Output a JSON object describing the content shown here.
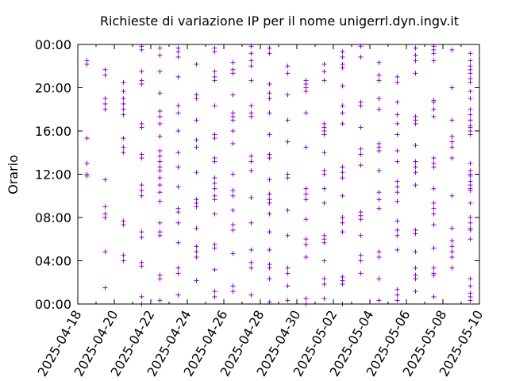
{
  "chart_data": {
    "type": "scatter",
    "title": "Richieste di variazione IP per il nome unigerrl.dyn.ingv.it",
    "ylabel": "Orario",
    "xlabel": "",
    "grid": false,
    "legend": "none",
    "marker": "plus",
    "color": "#9400d3",
    "xlim": [
      "2025-04-18",
      "2025-05-10"
    ],
    "ylim": [
      "00:00",
      "24:00"
    ],
    "x_ticks": [
      "2025-04-18",
      "2025-04-20",
      "2025-04-22",
      "2025-04-24",
      "2025-04-26",
      "2025-04-28",
      "2025-04-30",
      "2025-05-02",
      "2025-05-04",
      "2025-05-06",
      "2025-05-08",
      "2025-05-10"
    ],
    "y_ticks": [
      "00:00",
      "04:00",
      "08:00",
      "12:00",
      "16:00",
      "20:00",
      "00:00"
    ],
    "points": [
      [
        "2025-04-18 12:00",
        "2025-04-18 15:20",
        "2025-04-18 22:10",
        "2025-04-18 22:30",
        "2025-04-18 11:50",
        "2025-04-18 13:00"
      ],
      [
        "2025-04-19 01:30",
        "2025-04-19 04:50",
        "2025-04-19 08:00",
        "2025-04-19 08:20",
        "2025-04-19 09:00",
        "2025-04-19 11:30",
        "2025-04-19 18:00",
        "2025-04-19 18:30",
        "2025-04-19 19:00",
        "2025-04-19 21:10",
        "2025-04-19 21:40"
      ],
      [
        "2025-04-20 04:00",
        "2025-04-20 04:30",
        "2025-04-20 07:20",
        "2025-04-20 07:40",
        "2025-04-20 14:00",
        "2025-04-20 14:30",
        "2025-04-20 15:20",
        "2025-04-20 17:30",
        "2025-04-20 18:00",
        "2025-04-20 18:30",
        "2025-04-20 19:00",
        "2025-04-20 19:40",
        "2025-04-20 20:30"
      ],
      [
        "2025-04-21 00:00",
        "2025-04-21 00:40",
        "2025-04-21 03:30",
        "2025-04-21 03:50",
        "2025-04-21 06:10",
        "2025-04-21 06:40",
        "2025-04-21 10:00",
        "2025-04-21 10:30",
        "2025-04-21 11:00",
        "2025-04-21 13:30",
        "2025-04-21 13:50",
        "2025-04-21 16:20",
        "2025-04-21 16:40",
        "2025-04-21 20:20",
        "2025-04-21 20:40",
        "2025-04-21 21:30",
        "2025-04-21 23:30",
        "2025-04-21 23:50"
      ],
      [
        "2025-04-22 00:20",
        "2025-04-22 02:20",
        "2025-04-22 02:40",
        "2025-04-22 06:20",
        "2025-04-22 06:40",
        "2025-04-22 07:30",
        "2025-04-22 09:30",
        "2025-04-22 10:20",
        "2025-04-22 11:00",
        "2025-04-22 11:40",
        "2025-04-22 12:20",
        "2025-04-22 12:40",
        "2025-04-22 13:10",
        "2025-04-22 13:40",
        "2025-04-22 14:10",
        "2025-04-22 15:30",
        "2025-04-22 16:40",
        "2025-04-22 17:20",
        "2025-04-22 17:50",
        "2025-04-22 19:30",
        "2025-04-22 21:30",
        "2025-04-22 23:00",
        "2025-04-22 23:40"
      ],
      [
        "2025-04-23 00:50",
        "2025-04-23 02:50",
        "2025-04-23 03:20",
        "2025-04-23 05:40",
        "2025-04-23 07:30",
        "2025-04-23 08:30",
        "2025-04-23 08:50",
        "2025-04-23 10:50",
        "2025-04-23 12:40",
        "2025-04-23 14:00",
        "2025-04-23 16:00",
        "2025-04-23 17:40",
        "2025-04-23 18:20",
        "2025-04-23 21:00",
        "2025-04-23 22:50",
        "2025-04-23 23:20",
        "2025-04-23 23:40"
      ],
      [
        "2025-04-24 02:10",
        "2025-04-24 04:20",
        "2025-04-24 04:50",
        "2025-04-24 05:20",
        "2025-04-24 07:00",
        "2025-04-24 09:00",
        "2025-04-24 09:20",
        "2025-04-24 09:40",
        "2025-04-24 12:10",
        "2025-04-24 14:30",
        "2025-04-24 15:10",
        "2025-04-24 17:00",
        "2025-04-24 19:00",
        "2025-04-24 19:20",
        "2025-04-24 22:10"
      ],
      [
        "2025-04-25 00:40",
        "2025-04-25 01:10",
        "2025-04-25 03:10",
        "2025-04-25 05:10",
        "2025-04-25 05:30",
        "2025-04-25 08:20",
        "2025-04-25 09:40",
        "2025-04-25 10:00",
        "2025-04-25 10:40",
        "2025-04-25 11:10",
        "2025-04-25 11:40",
        "2025-04-25 13:10",
        "2025-04-25 13:30",
        "2025-04-25 15:20",
        "2025-04-25 15:40",
        "2025-04-25 18:20",
        "2025-04-25 20:40",
        "2025-04-25 21:00",
        "2025-04-25 21:30",
        "2025-04-25 23:20",
        "2025-04-25 23:40"
      ],
      [
        "2025-04-26 01:10",
        "2025-04-26 01:40",
        "2025-04-26 04:40",
        "2025-04-26 06:50",
        "2025-04-26 07:20",
        "2025-04-26 08:40",
        "2025-04-26 10:00",
        "2025-04-26 10:30",
        "2025-04-26 12:00",
        "2025-04-26 14:50",
        "2025-04-26 16:00",
        "2025-04-26 17:00",
        "2025-04-26 17:20",
        "2025-04-26 17:40",
        "2025-04-26 19:20",
        "2025-04-26 21:20",
        "2025-04-26 21:40",
        "2025-04-26 22:20"
      ],
      [
        "2025-04-27 00:50",
        "2025-04-27 03:20",
        "2025-04-27 03:50",
        "2025-04-27 05:00",
        "2025-04-27 07:30",
        "2025-04-27 09:50",
        "2025-04-27 12:20",
        "2025-04-27 13:10",
        "2025-04-27 13:40",
        "2025-04-27 17:20",
        "2025-04-27 17:40",
        "2025-04-27 18:20",
        "2025-04-27 20:40",
        "2025-04-27 22:00",
        "2025-04-27 22:30",
        "2025-04-27 23:10",
        "2025-04-27 23:50"
      ],
      [
        "2025-04-28 00:10",
        "2025-04-28 02:20",
        "2025-04-28 03:20",
        "2025-04-28 03:40",
        "2025-04-28 05:00",
        "2025-04-28 06:40",
        "2025-04-28 08:20",
        "2025-04-28 09:20",
        "2025-04-28 09:40",
        "2025-04-28 10:10",
        "2025-04-28 11:30",
        "2025-04-28 13:30",
        "2025-04-28 13:50",
        "2025-04-28 15:40",
        "2025-04-28 17:40",
        "2025-04-28 19:00",
        "2025-04-28 19:30",
        "2025-04-28 20:20",
        "2025-04-28 23:10",
        "2025-04-28 23:40"
      ],
      [
        "2025-04-29 00:20",
        "2025-04-29 01:40",
        "2025-04-29 02:50",
        "2025-04-29 03:20",
        "2025-04-29 06:20",
        "2025-04-29 08:40",
        "2025-04-29 11:40",
        "2025-04-29 12:00",
        "2025-04-29 15:00",
        "2025-04-29 17:00",
        "2025-04-29 19:20",
        "2025-04-29 21:20",
        "2025-04-29 22:00"
      ],
      [
        "2025-04-30 00:00",
        "2025-04-30 00:30",
        "2025-04-30 04:20",
        "2025-04-30 05:30",
        "2025-04-30 06:00",
        "2025-04-30 07:50",
        "2025-04-30 09:40",
        "2025-04-30 10:10",
        "2025-04-30 10:40",
        "2025-04-30 14:30",
        "2025-04-30 17:40",
        "2025-04-30 19:40",
        "2025-04-30 20:00",
        "2025-04-30 20:20",
        "2025-04-30 20:40"
      ],
      [
        "2025-05-01 00:30",
        "2025-05-01 01:50",
        "2025-05-01 02:20",
        "2025-05-01 04:00",
        "2025-05-01 05:40",
        "2025-05-01 06:00",
        "2025-05-01 06:20",
        "2025-05-01 09:20",
        "2025-05-01 10:40",
        "2025-05-01 12:00",
        "2025-05-01 12:20",
        "2025-05-01 14:00",
        "2025-05-01 15:40",
        "2025-05-01 16:00",
        "2025-05-01 16:20",
        "2025-05-01 16:40",
        "2025-05-01 20:40",
        "2025-05-01 21:30",
        "2025-05-01 22:10"
      ],
      [
        "2025-05-02 00:00",
        "2025-05-02 01:50",
        "2025-05-02 02:10",
        "2025-05-02 02:30",
        "2025-05-02 06:40",
        "2025-05-02 07:30",
        "2025-05-02 08:00",
        "2025-05-02 10:00",
        "2025-05-02 11:40",
        "2025-05-02 12:10",
        "2025-05-02 12:40",
        "2025-05-02 16:40",
        "2025-05-02 17:40",
        "2025-05-02 18:20",
        "2025-05-02 20:10",
        "2025-05-02 21:50",
        "2025-05-02 22:10",
        "2025-05-02 22:50",
        "2025-05-02 23:20"
      ],
      [
        "2025-05-03 02:50",
        "2025-05-03 04:00",
        "2025-05-03 04:30",
        "2025-05-03 06:20",
        "2025-05-03 07:50",
        "2025-05-03 08:10",
        "2025-05-03 08:30",
        "2025-05-03 12:50",
        "2025-05-03 13:50",
        "2025-05-03 14:20",
        "2025-05-03 16:20",
        "2025-05-03 18:20",
        "2025-05-03 18:40",
        "2025-05-03 22:50",
        "2025-05-03 23:50"
      ],
      [
        "2025-05-04 00:20",
        "2025-05-04 02:20",
        "2025-05-04 04:20",
        "2025-05-04 04:50",
        "2025-05-04 08:50",
        "2025-05-04 09:40",
        "2025-05-04 10:20",
        "2025-05-04 12:20",
        "2025-05-04 14:10",
        "2025-05-04 14:30",
        "2025-05-04 14:50",
        "2025-05-04 18:00",
        "2025-05-04 19:00",
        "2025-05-04 20:40",
        "2025-05-04 21:10",
        "2025-05-04 22:20"
      ],
      [
        "2025-05-05 00:20",
        "2025-05-05 00:50",
        "2025-05-05 01:20",
        "2025-05-05 05:00",
        "2025-05-05 06:20",
        "2025-05-05 06:50",
        "2025-05-05 07:40",
        "2025-05-05 09:30",
        "2025-05-05 10:20",
        "2025-05-05 10:50",
        "2025-05-05 11:20",
        "2025-05-05 13:10",
        "2025-05-05 14:10",
        "2025-05-05 15:40",
        "2025-05-05 16:40",
        "2025-05-05 17:30",
        "2025-05-05 18:40",
        "2025-05-05 20:30",
        "2025-05-05 21:00"
      ],
      [
        "2025-05-06 01:10",
        "2025-05-06 02:20",
        "2025-05-06 02:40",
        "2025-05-06 03:20",
        "2025-05-06 04:50",
        "2025-05-06 06:30",
        "2025-05-06 06:50",
        "2025-05-06 11:00",
        "2025-05-06 12:10",
        "2025-05-06 12:40",
        "2025-05-06 13:10",
        "2025-05-06 14:40",
        "2025-05-06 16:40",
        "2025-05-06 17:00",
        "2025-05-06 17:20",
        "2025-05-06 21:20",
        "2025-05-06 22:30",
        "2025-05-06 23:00",
        "2025-05-06 23:40"
      ],
      [
        "2025-05-07 00:40",
        "2025-05-07 02:40",
        "2025-05-07 02:50",
        "2025-05-07 03:20",
        "2025-05-07 05:10",
        "2025-05-07 07:20",
        "2025-05-07 08:20",
        "2025-05-07 08:50",
        "2025-05-07 09:20",
        "2025-05-07 10:40",
        "2025-05-07 12:40",
        "2025-05-07 13:00",
        "2025-05-07 13:30",
        "2025-05-07 17:20",
        "2025-05-07 18:00",
        "2025-05-07 18:40",
        "2025-05-07 18:50",
        "2025-05-07 22:30",
        "2025-05-07 23:10",
        "2025-05-07 23:30",
        "2025-05-07 23:50"
      ],
      [
        "2025-05-08 03:20",
        "2025-05-08 04:20",
        "2025-05-08 04:50",
        "2025-05-08 05:20",
        "2025-05-08 05:50",
        "2025-05-08 07:00",
        "2025-05-08 10:00",
        "2025-05-08 13:30",
        "2025-05-08 14:30",
        "2025-05-08 15:00",
        "2025-05-08 15:30",
        "2025-05-08 17:00",
        "2025-05-08 20:00",
        "2025-05-08 23:30"
      ],
      [
        "2025-05-09 00:40",
        "2025-05-09 01:00",
        "2025-05-09 01:40",
        "2025-05-09 06:00",
        "2025-05-09 09:20",
        "2025-05-09 10:40",
        "2025-05-09 11:00",
        "2025-05-09 11:20",
        "2025-05-09 11:50",
        "2025-05-09 13:00",
        "2025-05-09 16:00",
        "2025-05-09 16:20",
        "2025-05-09 19:40",
        "2025-05-09 20:50",
        "2025-05-09 21:20",
        "2025-05-09 21:40",
        "2025-05-09 22:00",
        "2025-05-09 23:10"
      ],
      [
        "2025-05-09 12:00",
        "2025-05-09 16:30",
        "2025-05-09 17:00",
        "2025-05-09 17:30",
        "2025-05-09 18:00",
        "2025-05-09 19:00",
        "2025-05-09 07:00",
        "2025-05-09 07:30",
        "2025-05-09 06:50",
        "2025-05-09 08:00",
        "2025-05-09 02:20",
        "2025-05-09 00:20",
        "2025-05-09 22:30",
        "2025-05-09 20:30",
        "2025-05-09 10:30",
        "2025-05-09 12:20",
        "2025-05-09 15:40"
      ]
    ]
  }
}
